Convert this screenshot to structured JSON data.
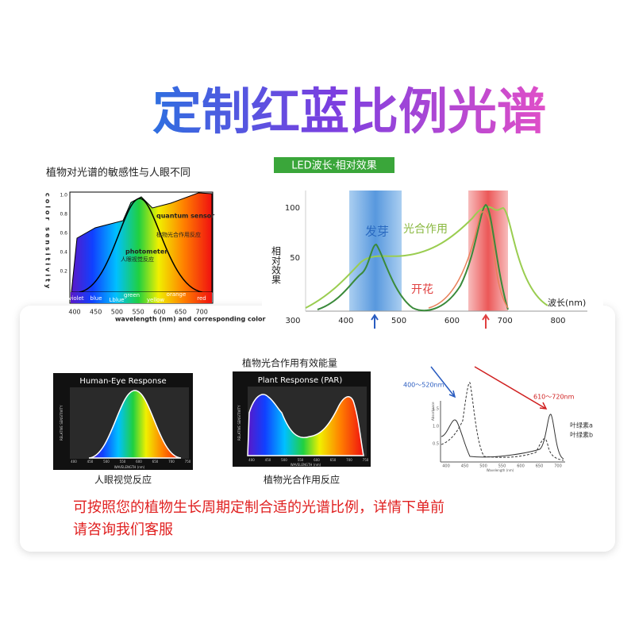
{
  "title": "定制红蓝比例光谱",
  "sensitivity": {
    "caption": "植物对光谱的敏感性与人眼不同",
    "y_label": "color sensitivity",
    "yticks": [
      "1.0",
      "0.8",
      "0.6",
      "0.4",
      "0.2"
    ],
    "xticks": [
      "400",
      "450",
      "500",
      "550",
      "600",
      "650",
      "700"
    ],
    "x_label": "wavelength (nm) and corresponding color",
    "quantum_label": "quantum sensor",
    "quantum_cn": "植物光合作用反应",
    "photometer_label": "photometer",
    "photometer_cn": "人眼视觉反应",
    "bands": [
      "violet",
      "blue",
      "Lblue",
      "green",
      "yellow",
      "orange",
      "red"
    ]
  },
  "led": {
    "tag": "LED波长·相对效果",
    "y_label": "相对效果",
    "yticks": [
      "100",
      "50"
    ],
    "xticks": [
      "300",
      "400",
      "500",
      "600",
      "700",
      "800"
    ],
    "x_label": "波长(nm)",
    "germination": "发芽",
    "photosynthesis": "光合作用",
    "flowering": "开花"
  },
  "human_eye": {
    "title": "Human-Eye Response",
    "y_label": "RELATIVE SENSITIVITY",
    "x_label": "WAVELENGTH (nm)",
    "xticks": [
      "400",
      "450",
      "500",
      "550",
      "600",
      "650",
      "700",
      "750"
    ],
    "caption": "人眼视觉反应"
  },
  "par": {
    "heading": "植物光合作用有效能量",
    "title": "Plant Response (PAR)",
    "y_label": "RELATIVE SENSITIVITY",
    "x_label": "WAVELENGTH (nm)",
    "xticks": [
      "400",
      "450",
      "500",
      "550",
      "600",
      "650",
      "700",
      "750"
    ],
    "caption": "植物光合作用反应"
  },
  "chlorophyll": {
    "blue_range": "400～520nm",
    "red_range": "610～720nm",
    "y_label": "Absorbance",
    "yticks": [
      "1.5",
      "1.0",
      "0.5"
    ],
    "xticks": [
      "400",
      "450",
      "500",
      "550",
      "600",
      "650",
      "700"
    ],
    "x_label": "Wavelength (nm)",
    "legend": [
      "叶绿素a",
      "叶绿素b"
    ]
  },
  "note": [
    "可按照您的植物生长周期定制合适的光谱比例，详情下单前",
    "请咨询我们客服"
  ]
}
